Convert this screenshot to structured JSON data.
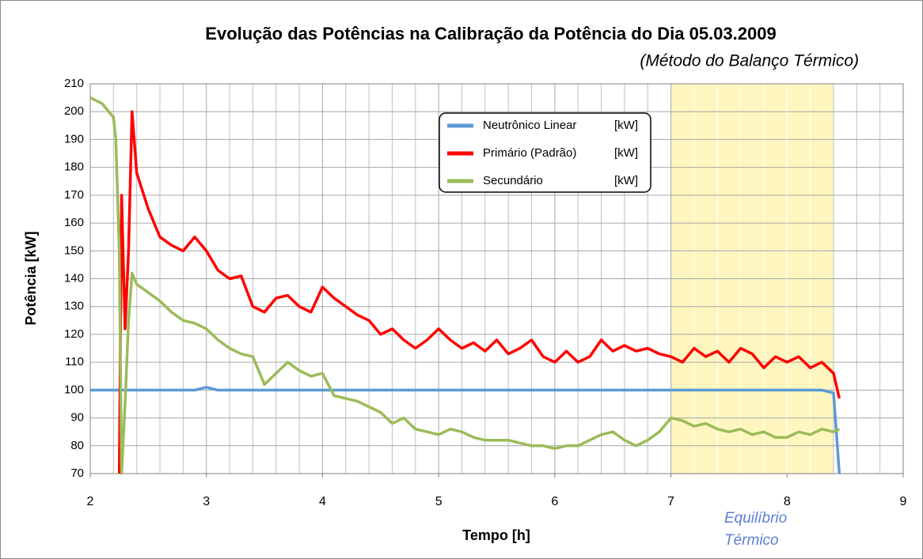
{
  "chart_data": {
    "type": "line",
    "title": "Evolução das  Potências  na Calibração da Potência do Dia 05.03.2009",
    "subtitle": "(Método do Balanço Térmico)",
    "xlabel": "Tempo [h]",
    "ylabel": "Potência [kW]",
    "annotation_lines": [
      "Equilíbrio",
      "Térmico"
    ],
    "highlight": {
      "xlim": [
        7,
        8.4
      ],
      "color": "#fff6bf"
    },
    "xlim": [
      2,
      9
    ],
    "xticks": [
      2,
      3,
      4,
      5,
      6,
      7,
      8,
      9
    ],
    "xminor_ticks": [
      2.2,
      2.4,
      2.6,
      2.8,
      3.2,
      3.4,
      3.6,
      3.8,
      4.2,
      4.4,
      4.6,
      4.8,
      5.2,
      5.4,
      5.6,
      5.8,
      6.2,
      6.4,
      6.6,
      6.8,
      7.2,
      7.4,
      7.6,
      7.8,
      8.2,
      8.4,
      8.6,
      8.8
    ],
    "ylim": [
      70,
      210
    ],
    "yticks": [
      70,
      80,
      90,
      100,
      110,
      120,
      130,
      140,
      150,
      160,
      170,
      180,
      190,
      200,
      210
    ],
    "grid": true,
    "legend_units": [
      "[kW]",
      "[kW]",
      "[kW]"
    ],
    "x": [
      2.0,
      2.1,
      2.2,
      2.22,
      2.25,
      2.27,
      2.3,
      2.33,
      2.36,
      2.4,
      2.5,
      2.6,
      2.7,
      2.8,
      2.9,
      3.0,
      3.1,
      3.2,
      3.3,
      3.4,
      3.5,
      3.6,
      3.7,
      3.8,
      3.9,
      4.0,
      4.1,
      4.2,
      4.3,
      4.4,
      4.5,
      4.6,
      4.7,
      4.8,
      4.9,
      5.0,
      5.1,
      5.2,
      5.3,
      5.4,
      5.5,
      5.6,
      5.7,
      5.8,
      5.9,
      6.0,
      6.1,
      6.2,
      6.3,
      6.4,
      6.5,
      6.6,
      6.7,
      6.8,
      6.9,
      7.0,
      7.1,
      7.2,
      7.3,
      7.4,
      7.5,
      7.6,
      7.7,
      7.8,
      7.9,
      8.0,
      8.1,
      8.2,
      8.3,
      8.4,
      8.45
    ],
    "series": [
      {
        "name": "Neutrônico Linear",
        "color": "#5b9bd5",
        "values": [
          100,
          100,
          100,
          100,
          100,
          100,
          100,
          100,
          100,
          100,
          100,
          100,
          100,
          100,
          100,
          101,
          100,
          100,
          100,
          100,
          100,
          100,
          100,
          100,
          100,
          100,
          100,
          100,
          100,
          100,
          100,
          100,
          100,
          100,
          100,
          100,
          100,
          100,
          100,
          100,
          100,
          100,
          100,
          100,
          100,
          100,
          100,
          100,
          100,
          100,
          100,
          100,
          100,
          100,
          100,
          100,
          100,
          100,
          100,
          100,
          100,
          100,
          100,
          100,
          100,
          100,
          100,
          100,
          100,
          99,
          70
        ]
      },
      {
        "name": "Primário (Padrão)",
        "color": "#ff0000",
        "values": [
          null,
          null,
          null,
          null,
          70,
          170,
          122,
          150,
          200,
          178,
          165,
          155,
          152,
          150,
          155,
          150,
          143,
          140,
          141,
          130,
          128,
          133,
          134,
          130,
          128,
          137,
          133,
          130,
          127,
          125,
          120,
          122,
          118,
          115,
          118,
          122,
          118,
          115,
          117,
          114,
          118,
          113,
          115,
          118,
          112,
          110,
          114,
          110,
          112,
          118,
          114,
          116,
          114,
          115,
          113,
          112,
          110,
          115,
          112,
          114,
          110,
          115,
          113,
          108,
          112,
          110,
          112,
          108,
          110,
          106,
          97
        ]
      },
      {
        "name": "Secundário",
        "color": "#9bbb59",
        "values": [
          205,
          203,
          198,
          190,
          150,
          70,
          95,
          125,
          142,
          138,
          135,
          132,
          128,
          125,
          124,
          122,
          118,
          115,
          113,
          112,
          102,
          106,
          110,
          107,
          105,
          106,
          98,
          97,
          96,
          94,
          92,
          88,
          90,
          86,
          85,
          84,
          86,
          85,
          83,
          82,
          82,
          82,
          81,
          80,
          80,
          79,
          80,
          80,
          82,
          84,
          85,
          82,
          80,
          82,
          85,
          90,
          89,
          87,
          88,
          86,
          85,
          86,
          84,
          85,
          83,
          83,
          85,
          84,
          86,
          85,
          86
        ]
      }
    ]
  }
}
